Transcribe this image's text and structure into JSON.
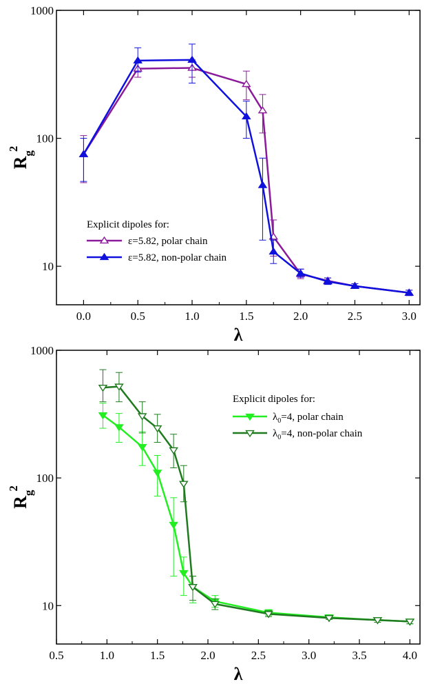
{
  "chart_data": [
    {
      "type": "line",
      "xlabel": "λ",
      "ylabel": "R_g^2",
      "ylabel_main": "R",
      "ylabel_sub": "g",
      "ylabel_sup": "2",
      "xlim": [
        -0.25,
        3.1
      ],
      "ylim": [
        5,
        1000
      ],
      "yscale": "log",
      "x_ticks": [
        0.0,
        0.5,
        1.0,
        1.5,
        2.0,
        2.5,
        3.0
      ],
      "x_tick_labels": [
        "0.0",
        "0.5",
        "1.0",
        "1.5",
        "2.0",
        "2.5",
        "3.0"
      ],
      "y_ticks": [
        10,
        100,
        1000
      ],
      "y_tick_labels": [
        "10",
        "100",
        "1000"
      ],
      "legend_title": "Explicit dipoles for:",
      "legend_position": "lower-left",
      "series": [
        {
          "name": "ε=5.82, polar chain",
          "color": "#8a1a9a",
          "marker": "triangle-up-open",
          "x": [
            0.0,
            0.5,
            1.0,
            1.5,
            1.65,
            1.75,
            2.0,
            2.25,
            2.5,
            3.0
          ],
          "y": [
            75,
            350,
            355,
            265,
            165,
            17,
            8.7,
            7.7,
            7.0,
            6.2
          ],
          "err": [
            [
              45,
              105
            ],
            [
              300,
              400
            ],
            [
              300,
              410
            ],
            [
              200,
              335
            ],
            [
              110,
              220
            ],
            [
              12,
              23
            ],
            [
              8,
              9.5
            ],
            [
              7.3,
              8.1
            ],
            [
              6.7,
              7.3
            ],
            [
              5.9,
              6.5
            ]
          ]
        },
        {
          "name": "ε=5.82, non-polar chain",
          "color": "#1010dd",
          "marker": "triangle-up-filled",
          "x": [
            0.0,
            0.5,
            1.0,
            1.5,
            1.65,
            1.75,
            2.0,
            2.25,
            2.5,
            3.0
          ],
          "y": [
            75,
            405,
            410,
            148,
            43,
            13,
            8.8,
            7.6,
            7.0,
            6.2
          ],
          "err": [
            [
              46,
              100
            ],
            [
              330,
              510
            ],
            [
              270,
              545
            ],
            [
              100,
              195
            ],
            [
              16,
              70
            ],
            [
              10.5,
              16
            ],
            [
              8.2,
              9.5
            ],
            [
              7.2,
              8.1
            ],
            [
              6.7,
              7.3
            ],
            [
              5.9,
              6.5
            ]
          ]
        }
      ]
    },
    {
      "type": "line",
      "xlabel": "λ",
      "ylabel": "R_g^2",
      "ylabel_main": "R",
      "ylabel_sub": "g",
      "ylabel_sup": "2",
      "xlim": [
        0.5,
        4.1
      ],
      "ylim": [
        5,
        1000
      ],
      "yscale": "log",
      "x_ticks": [
        0.5,
        1.0,
        1.5,
        2.0,
        2.5,
        3.0,
        3.5,
        4.0
      ],
      "x_tick_labels": [
        "0.5",
        "1.0",
        "1.5",
        "2.0",
        "2.5",
        "3.0",
        "3.5",
        "4.0"
      ],
      "y_ticks": [
        10,
        100,
        1000
      ],
      "y_tick_labels": [
        "10",
        "100",
        "1000"
      ],
      "legend_title": "Explicit dipoles for:",
      "legend_position": "top-right",
      "series": [
        {
          "name": "λ0=4, polar chain",
          "label_main": "λ",
          "label_sub": "0",
          "label_rest": "=4, polar chain",
          "color": "#22ee22",
          "marker": "triangle-down-filled",
          "x": [
            0.96,
            1.12,
            1.35,
            1.5,
            1.66,
            1.76,
            1.85,
            2.07,
            2.6,
            3.2,
            3.68,
            4.0
          ],
          "y": [
            310,
            250,
            175,
            110,
            43,
            18,
            14,
            10.8,
            8.8,
            8.1,
            7.7,
            7.5
          ],
          "err": [
            [
              245,
              385
            ],
            [
              190,
              320
            ],
            [
              125,
              230
            ],
            [
              72,
              150
            ],
            [
              17,
              70
            ],
            [
              12,
              24
            ],
            [
              10.5,
              17
            ],
            [
              9.7,
              12
            ],
            [
              8.4,
              9.3
            ],
            [
              7.8,
              8.4
            ],
            [
              7.4,
              8
            ],
            [
              7.2,
              7.8
            ]
          ]
        },
        {
          "name": "λ0=4, non-polar chain",
          "label_main": "λ",
          "label_sub": "0",
          "label_rest": "=4, non-polar chain",
          "color": "#1f7a1f",
          "marker": "triangle-down-open",
          "x": [
            0.96,
            1.12,
            1.35,
            1.5,
            1.66,
            1.76,
            1.85,
            2.07,
            2.6,
            3.2,
            3.68,
            4.0
          ],
          "y": [
            510,
            520,
            305,
            245,
            165,
            90,
            14,
            10.3,
            8.6,
            8.0,
            7.7,
            7.5
          ],
          "err": [
            [
              395,
              705
            ],
            [
              395,
              670
            ],
            [
              225,
              395
            ],
            [
              190,
              315
            ],
            [
              120,
              220
            ],
            [
              65,
              125
            ],
            [
              11,
              17
            ],
            [
              9.3,
              11.3
            ],
            [
              8.2,
              9.1
            ],
            [
              7.8,
              8.3
            ],
            [
              7.4,
              8
            ],
            [
              7.2,
              7.8
            ]
          ]
        }
      ]
    }
  ]
}
